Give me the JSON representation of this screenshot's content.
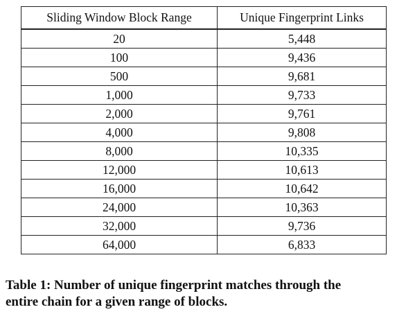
{
  "table": {
    "headers": [
      "Sliding Window Block Range",
      "Unique Fingerprint Links"
    ],
    "rows": [
      [
        "20",
        "5,448"
      ],
      [
        "100",
        "9,436"
      ],
      [
        "500",
        "9,681"
      ],
      [
        "1,000",
        "9,733"
      ],
      [
        "2,000",
        "9,761"
      ],
      [
        "4,000",
        "9,808"
      ],
      [
        "8,000",
        "10,335"
      ],
      [
        "12,000",
        "10,613"
      ],
      [
        "16,000",
        "10,642"
      ],
      [
        "24,000",
        "10,363"
      ],
      [
        "32,000",
        "9,736"
      ],
      [
        "64,000",
        "6,833"
      ]
    ]
  },
  "caption": {
    "line1": "Table 1: Number of unique fingerprint matches through the",
    "line2": "entire chain for a given range of blocks."
  }
}
